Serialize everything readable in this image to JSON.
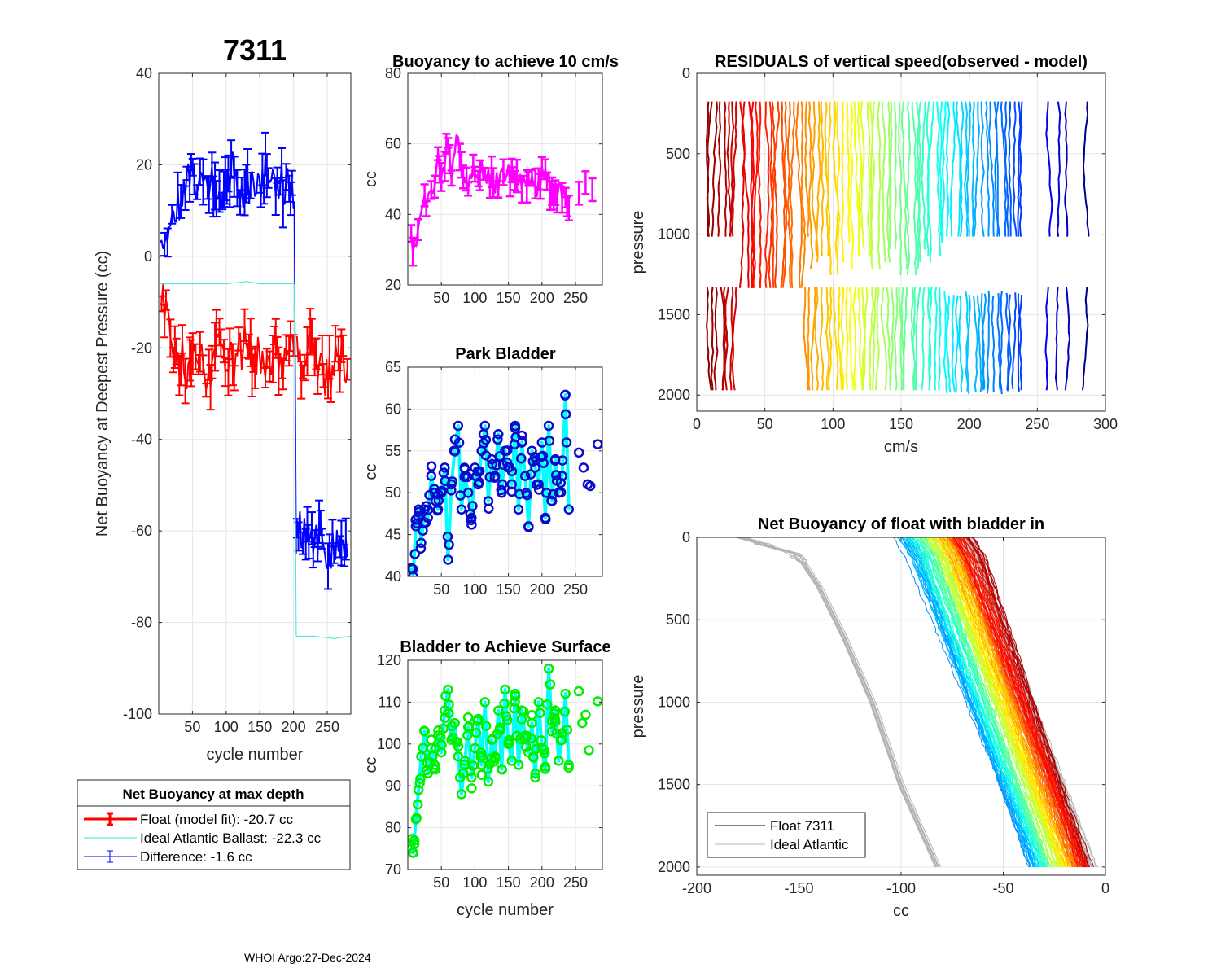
{
  "figure_title": "7311",
  "footer": "WHOI Argo:27-Dec-2024",
  "colors": {
    "red": "#ff0000",
    "blue": "#0000ff",
    "cyan": "#00ffff",
    "teal": "#3fe6d6",
    "magenta": "#ff00ff",
    "green": "#00ee00",
    "dark_blue": "#0a0acc",
    "gray": "#b4b4b4",
    "grid": "#e6e6e6"
  },
  "chart_data": [
    {
      "id": "net_buoyancy",
      "type": "errorbar",
      "title": "7311",
      "xlabel": "cycle number",
      "ylabel": "Net Buoyancy at Deepest Pressure (cc)",
      "xlim": [
        0,
        285
      ],
      "ylim": [
        -100,
        40
      ],
      "xticks": [
        50,
        100,
        150,
        200,
        250
      ],
      "yticks": [
        -100,
        -80,
        -60,
        -40,
        -20,
        0,
        20,
        40
      ],
      "series": [
        {
          "name": "Float (model fit)",
          "color": "#ff0000",
          "segments": [
            {
              "x": [
                2,
                10,
                20,
                30,
                40,
                50,
                60,
                70,
                80,
                90,
                100,
                110,
                120,
                130,
                140,
                150,
                160,
                170,
                180,
                190,
                200
              ],
              "y": [
                -6,
                -12,
                -17,
                -21,
                -25,
                -24,
                -22,
                -26,
                -23,
                -20,
                -22,
                -24,
                -22,
                -19,
                -23,
                -21,
                -24,
                -22,
                -20,
                -23,
                -21
              ]
            },
            {
              "x": [
                205,
                215,
                225,
                235,
                250,
                265,
                280
              ],
              "y": [
                -20,
                -25,
                -18,
                -24,
                -26,
                -22,
                -23
              ]
            }
          ]
        },
        {
          "name": "Ideal Atlantic Ballast",
          "color": "#3fe6d6",
          "segments": [
            {
              "x": [
                2,
                50,
                100,
                130,
                150,
                200
              ],
              "y": [
                -6,
                -6,
                -6,
                -5.5,
                -6,
                -6
              ]
            },
            {
              "x": [
                204,
                230,
                260,
                285
              ],
              "y": [
                -83,
                -83,
                -83.5,
                -83
              ]
            }
          ]
        },
        {
          "name": "Difference",
          "color": "#0000ff",
          "segments": [
            {
              "x": [
                2,
                10,
                20,
                30,
                40,
                50,
                60,
                70,
                80,
                90,
                100,
                110,
                120,
                130,
                140,
                150,
                160,
                170,
                180,
                190,
                200
              ],
              "y": [
                0,
                5,
                9,
                12,
                14,
                17,
                16,
                19,
                17,
                14,
                16,
                18,
                16,
                14,
                17,
                15,
                18,
                16,
                15,
                17,
                15
              ]
            },
            {
              "x": [
                205,
                215,
                225,
                235,
                250,
                265,
                280
              ],
              "y": [
                -63,
                -58,
                -65,
                -60,
                -66,
                -62,
                -61
              ]
            }
          ]
        }
      ],
      "legend": {
        "title": "Net Buoyancy at max depth",
        "entries": [
          {
            "label": "Float (model fit): -20.7 cc",
            "color": "#ff0000"
          },
          {
            "label": "Ideal Atlantic Ballast: -22.3 cc",
            "color": "#3fe6d6"
          },
          {
            "label": "Difference:  -1.6 cc",
            "color": "#0000ff"
          }
        ]
      }
    },
    {
      "id": "buoyancy_10cms",
      "type": "errorbar",
      "title": "Buoyancy to achieve 10 cm/s",
      "xlabel": "",
      "ylabel": "cc",
      "xlim": [
        0,
        290
      ],
      "ylim": [
        20,
        80
      ],
      "xticks": [
        50,
        100,
        150,
        200,
        250
      ],
      "yticks": [
        20,
        40,
        60,
        80
      ],
      "series": [
        {
          "name": "buoyancy",
          "color": "#ff00ff",
          "x": [
            5,
            10,
            15,
            20,
            25,
            30,
            35,
            40,
            45,
            50,
            55,
            60,
            65,
            70,
            75,
            80,
            90,
            100,
            110,
            120,
            130,
            140,
            150,
            160,
            170,
            180,
            190,
            200,
            210,
            220,
            230,
            240,
            255,
            265,
            275
          ],
          "y": [
            33,
            30,
            38,
            40,
            44,
            45,
            48,
            50,
            55,
            52,
            56,
            60,
            52,
            58,
            63,
            54,
            50,
            52,
            53,
            50,
            49,
            51,
            52,
            48,
            50,
            49,
            47,
            51,
            49,
            46,
            47,
            44,
            46,
            49,
            47
          ]
        }
      ]
    },
    {
      "id": "park_bladder",
      "type": "line-marker",
      "title": "Park Bladder",
      "xlabel": "",
      "ylabel": "cc",
      "xlim": [
        0,
        290
      ],
      "ylim": [
        40,
        65
      ],
      "xticks": [
        50,
        100,
        150,
        200,
        250
      ],
      "yticks": [
        40,
        45,
        50,
        55,
        60,
        65
      ],
      "series": [
        {
          "name": "park bladder",
          "color": "#00ffff",
          "marker_color": "#0a0acc",
          "x": [
            5,
            8,
            12,
            16,
            20,
            25,
            30,
            35,
            40,
            45,
            50,
            55,
            60,
            65,
            70,
            75,
            80,
            85,
            90,
            95,
            100,
            105,
            110,
            115,
            120,
            125,
            130,
            135,
            140,
            145,
            150,
            155,
            160,
            165,
            170,
            175,
            180,
            185,
            190,
            195,
            200,
            205,
            210,
            215,
            220,
            225,
            230,
            235,
            240
          ],
          "y": [
            41,
            40,
            46,
            48,
            44,
            48,
            47,
            52,
            50,
            48,
            50,
            53,
            42,
            51,
            55,
            58,
            48,
            52,
            50,
            47,
            53,
            51,
            55,
            58,
            49,
            54,
            52,
            57,
            50,
            55,
            53,
            51,
            58,
            48,
            56,
            52,
            46,
            55,
            53,
            51,
            56,
            47,
            58,
            49,
            54,
            50,
            52,
            61.7,
            48
          ]
        },
        {
          "name": "extra markers",
          "x": [
            255,
            262,
            268,
            272,
            283
          ],
          "y": [
            54.8,
            53,
            51,
            50.8,
            55.8
          ]
        }
      ]
    },
    {
      "id": "bladder_surface",
      "type": "line-marker",
      "title": "Bladder to Achieve Surface",
      "xlabel": "cycle number",
      "ylabel": "cc",
      "xlim": [
        0,
        290
      ],
      "ylim": [
        70,
        120
      ],
      "xticks": [
        50,
        100,
        150,
        200,
        250
      ],
      "yticks": [
        70,
        80,
        90,
        100,
        110,
        120
      ],
      "series": [
        {
          "name": "bladder surface",
          "color": "#00ffff",
          "marker_color": "#00ee00",
          "x": [
            5,
            8,
            12,
            16,
            20,
            25,
            30,
            35,
            40,
            45,
            50,
            55,
            60,
            65,
            70,
            75,
            80,
            85,
            90,
            95,
            100,
            105,
            110,
            115,
            120,
            125,
            130,
            135,
            140,
            145,
            150,
            155,
            160,
            165,
            170,
            175,
            180,
            185,
            190,
            195,
            200,
            205,
            210,
            215,
            220,
            225,
            230,
            235,
            240
          ],
          "y": [
            75,
            74,
            82,
            89,
            97,
            103,
            93,
            99,
            95,
            102,
            98,
            108,
            113,
            101,
            105,
            97,
            88,
            96,
            104,
            92,
            99,
            106,
            95,
            110,
            91,
            101,
            97,
            108,
            94,
            113,
            100,
            96,
            112,
            95,
            108,
            102,
            98,
            105,
            92,
            110,
            99,
            94,
            118,
            103,
            108,
            96,
            101,
            112,
            95
          ]
        },
        {
          "name": "extra markers",
          "x": [
            255,
            260,
            265,
            270,
            283
          ],
          "y": [
            112.6,
            105,
            107,
            98.5,
            110.2
          ]
        }
      ]
    },
    {
      "id": "residuals",
      "type": "profile-lines",
      "title": "RESIDUALS of vertical speed(observed - model)",
      "xlabel": "cm/s",
      "ylabel": "pressure",
      "xlim": [
        0,
        300
      ],
      "ylim": [
        2100,
        0
      ],
      "xticks": [
        0,
        50,
        100,
        150,
        200,
        250,
        300
      ],
      "yticks": [
        0,
        500,
        1000,
        1500,
        2000
      ],
      "colormap": "jet",
      "profile_x_min": 8,
      "profile_x_max": 240,
      "profile_spacing": 3,
      "extra_profiles": [
        258,
        265,
        271,
        286
      ],
      "upper_range": [
        175,
        1020
      ],
      "lower_range": [
        1330,
        2000
      ]
    },
    {
      "id": "net_buoyancy_bladder",
      "type": "profile-lines",
      "title": "Net Buoyancy of float with bladder in",
      "xlabel": "cc",
      "ylabel": "pressure",
      "xlim": [
        -200,
        0
      ],
      "ylim": [
        2050,
        0
      ],
      "xticks": [
        -200,
        -150,
        -100,
        -50,
        0
      ],
      "yticks": [
        0,
        500,
        1000,
        1500,
        2000
      ],
      "legend": {
        "entries": [
          {
            "label": "Float 7311",
            "color": "#000000"
          },
          {
            "label": "Ideal Atlantic",
            "color": "#b4b4b4"
          }
        ]
      },
      "ideal_profile": {
        "p": [
          0,
          50,
          100,
          150,
          300,
          600,
          1000,
          1500,
          2000
        ],
        "x": [
          -178,
          -165,
          -152,
          -148,
          -140,
          -128,
          -114,
          -100,
          -82
        ]
      },
      "float_profile_surface_range": [
        -105,
        -65
      ],
      "float_profile_bottom_range": [
        -40,
        -5
      ]
    }
  ]
}
